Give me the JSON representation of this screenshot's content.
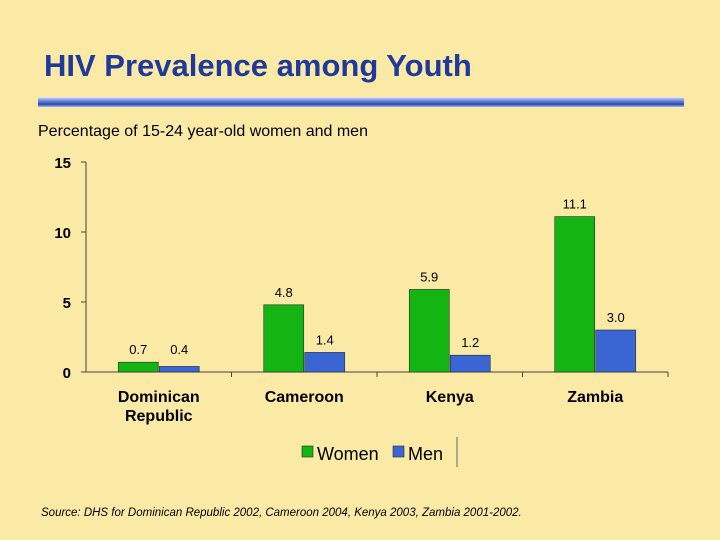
{
  "slide": {
    "title": "HIV Prevalence among Youth",
    "subtitle": "Percentage of 15-24 year-old women and men",
    "source": "Source: DHS for Dominican Republic 2002, Cameroon 2004, Kenya 2003, Zambia 2001-2002."
  },
  "chart_data": {
    "type": "bar",
    "title": "HIV Prevalence among Youth",
    "ylabel": "",
    "xlabel": "",
    "ylim": [
      0,
      15
    ],
    "yticks": [
      0,
      5,
      10,
      15
    ],
    "categories": [
      [
        "Dominican",
        "Republic"
      ],
      [
        "Cameroon"
      ],
      [
        "Kenya"
      ],
      [
        "Zambia"
      ]
    ],
    "series": [
      {
        "name": "Women",
        "color": "#14b414",
        "values": [
          0.7,
          4.8,
          5.9,
          11.1
        ],
        "labels": [
          "0.7",
          "4.8",
          "5.9",
          "11.1"
        ]
      },
      {
        "name": "Men",
        "color": "#3a66d4",
        "values": [
          0.4,
          1.4,
          1.2,
          3.0
        ],
        "labels": [
          "0.4",
          "1.4",
          "1.2",
          "3.0"
        ]
      }
    ],
    "legend_position": "bottom-center",
    "grid": false
  }
}
